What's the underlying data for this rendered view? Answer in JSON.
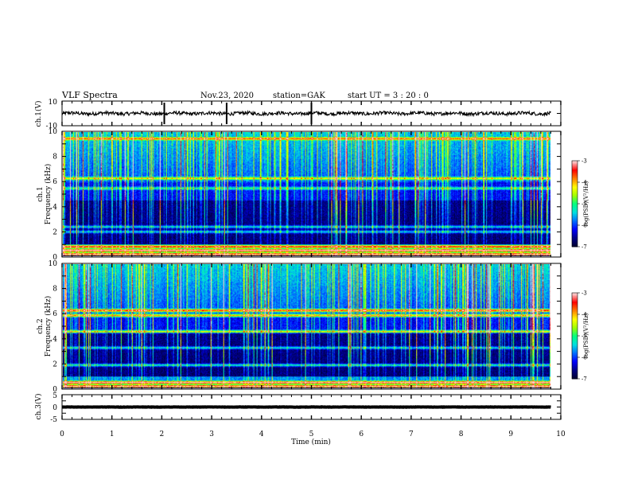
{
  "header": {
    "title": "VLF Spectra",
    "date": "Nov.23, 2020",
    "station": "station=GAK",
    "start": "start  UT =  3 : 20 : 0"
  },
  "colors": {
    "trace": "#000000",
    "colormap": [
      "#000033",
      "#000088",
      "#0000ff",
      "#0070ff",
      "#00e0e0",
      "#00ff80",
      "#a0ff00",
      "#ffff00",
      "#ff8000",
      "#ff0000",
      "#ffcccc"
    ]
  },
  "chart_data": [
    {
      "type": "line",
      "name": "ch1-waveform",
      "ylabel": "ch.1(V)",
      "ylim": [
        -10,
        10
      ],
      "yticks": [
        "10",
        "-10"
      ],
      "xlim": [
        0,
        10
      ],
      "level": 0,
      "noise": 1.4
    },
    {
      "type": "heatmap",
      "name": "ch1-spectrogram",
      "ylabel": "ch.1\nFrequency (kHz)",
      "ylim": [
        0,
        10
      ],
      "yticks": [
        "0",
        "2",
        "4",
        "6",
        "8",
        "10"
      ],
      "xlim": [
        0,
        10
      ],
      "data_x_end": 9.8,
      "colorbar": {
        "label": "log(PSD)(V²/Hz)",
        "range": [
          -7,
          -3
        ],
        "ticks": [
          "-3",
          "-4",
          "-5",
          "-6",
          "-7"
        ]
      },
      "bands_khz": [
        {
          "f": 0.2,
          "level": 0.7
        },
        {
          "f": 0.5,
          "level": 0.75
        },
        {
          "f": 0.8,
          "level": 0.65
        },
        {
          "f": 2.0,
          "level": 0.35
        },
        {
          "f": 2.4,
          "level": 0.35
        },
        {
          "f": 5.5,
          "level": 0.3
        },
        {
          "f": 6.3,
          "level": 0.45
        },
        {
          "f": 9.5,
          "level": 0.5
        }
      ]
    },
    {
      "type": "heatmap",
      "name": "ch2-spectrogram",
      "ylabel": "ch.2\nFrequency (kHz)",
      "ylim": [
        0,
        10
      ],
      "yticks": [
        "0",
        "2",
        "4",
        "6",
        "8",
        "10"
      ],
      "xlim": [
        0,
        10
      ],
      "data_x_end": 9.8,
      "colorbar": {
        "label": "log(PSD)(V²/Hz)",
        "range": [
          -7,
          -3
        ],
        "ticks": [
          "-3",
          "-4",
          "-5",
          "-6",
          "-7"
        ]
      },
      "bands_khz": [
        {
          "f": 0.2,
          "level": 0.7
        },
        {
          "f": 0.5,
          "level": 0.7
        },
        {
          "f": 1.9,
          "level": 0.4
        },
        {
          "f": 3.3,
          "level": 0.35
        },
        {
          "f": 4.6,
          "level": 0.5
        },
        {
          "f": 5.9,
          "level": 0.6
        },
        {
          "f": 6.3,
          "level": 0.65
        }
      ]
    },
    {
      "type": "line",
      "name": "ch3-waveform",
      "ylabel": "ch.3(V)",
      "ylim": [
        -5,
        5
      ],
      "yticks": [
        "5",
        "0",
        "-5"
      ],
      "xlim": [
        0,
        10
      ],
      "level": 0,
      "noise": 0.05
    }
  ],
  "xaxis": {
    "label": "Time (min)",
    "ticks": [
      "0",
      "1",
      "2",
      "3",
      "4",
      "5",
      "6",
      "7",
      "8",
      "9",
      "10"
    ]
  }
}
